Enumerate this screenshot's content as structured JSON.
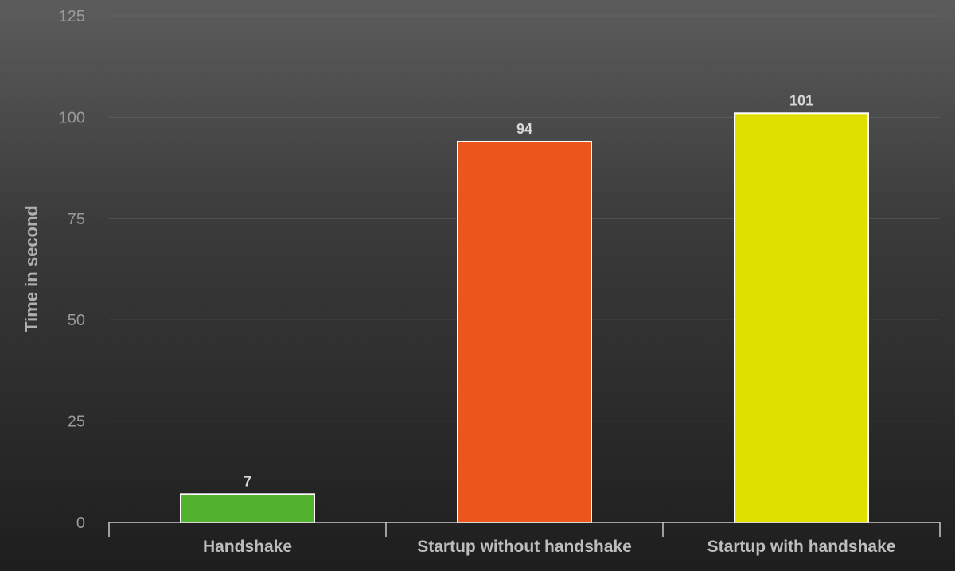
{
  "chart_data": {
    "type": "bar",
    "ylabel": "Time in second",
    "xlabel": "",
    "ylim": [
      0,
      125
    ],
    "yticks": [
      0,
      25,
      50,
      75,
      100,
      125
    ],
    "grid": true,
    "data_labels": true,
    "categories": [
      "Handshake",
      "Startup without handshake",
      "Startup with handshake"
    ],
    "values": [
      7,
      94,
      101
    ],
    "colors": [
      "#52b22e",
      "#eb561d",
      "#dfe000"
    ]
  }
}
